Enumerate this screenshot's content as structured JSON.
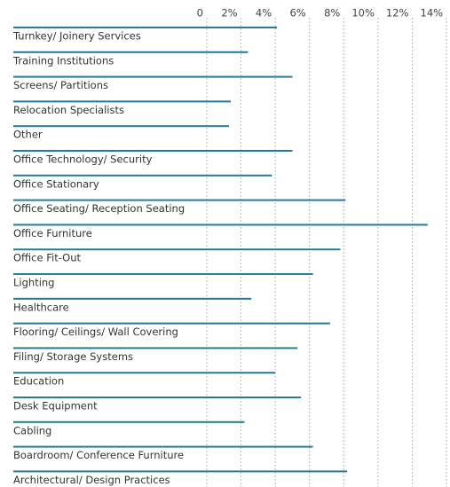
{
  "chart_data": {
    "type": "bar",
    "orientation": "horizontal",
    "categories": [
      "Turnkey/ Joinery Services",
      "Training Institutions",
      "Screens/ Partitions",
      "Relocation Specialists",
      "Other",
      "Office Technology/ Security",
      "Office Stationary",
      "Office Seating/ Reception Seating",
      "Office Furniture",
      "Office Fit-Out",
      "Lighting",
      "Healthcare",
      "Flooring/ Ceilings/ Wall Covering",
      "Filing/ Storage Systems",
      "Education",
      "Desk Equipment",
      "Cabling",
      "Boardroom/ Conference Furniture",
      "Architectural/ Design Practices"
    ],
    "values": [
      4.1,
      2.4,
      5.0,
      1.4,
      1.3,
      5.0,
      3.8,
      8.1,
      12.9,
      7.8,
      6.2,
      2.6,
      7.2,
      5.3,
      4.0,
      5.5,
      2.2,
      6.2,
      8.2
    ],
    "color": "#2a7a95",
    "xlim": [
      -11.3,
      14.1
    ],
    "xticks": [
      0,
      {
        "value": 2,
        "label": "2%"
      },
      {
        "value": 4,
        "label": "4%"
      },
      {
        "value": 6,
        "label": "6%"
      },
      {
        "value": 8,
        "label": "8%"
      },
      {
        "value": 10,
        "label": "10%"
      },
      {
        "value": 12,
        "label": "12%"
      },
      {
        "value": 14,
        "label": "14%"
      }
    ],
    "grid": true
  }
}
